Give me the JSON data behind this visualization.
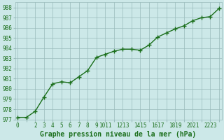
{
  "x": [
    0,
    1,
    2,
    3,
    4,
    5,
    6,
    7,
    8,
    9,
    10,
    11,
    12,
    13,
    14,
    15,
    16,
    17,
    18,
    19,
    20,
    21,
    22,
    23
  ],
  "y": [
    977.2,
    977.2,
    977.8,
    979.2,
    980.5,
    980.7,
    980.6,
    981.2,
    981.8,
    983.1,
    983.4,
    983.7,
    983.9,
    983.9,
    983.8,
    984.3,
    985.1,
    985.5,
    985.9,
    986.2,
    986.7,
    987.0,
    987.1,
    987.9
  ],
  "line_color": "#1a6e1a",
  "marker": "+",
  "marker_size": 4,
  "line_width": 1.0,
  "bg_color": "#cce8e8",
  "grid_color": "#99bbbb",
  "xlabel": "Graphe pression niveau de la mer (hPa)",
  "xlabel_fontsize": 7,
  "xlabel_color": "#1a6e1a",
  "ylabel_ticks": [
    977,
    978,
    979,
    980,
    981,
    982,
    983,
    984,
    985,
    986,
    987,
    988
  ],
  "xtick_labels": [
    "0",
    "2",
    "3",
    "4",
    "5",
    "6",
    "7",
    "8",
    "9",
    "1011",
    "1213",
    "1415",
    "1617",
    "1819",
    "2021",
    "2223"
  ],
  "ylim": [
    977,
    988.5
  ],
  "xlim": [
    -0.3,
    23.3
  ],
  "tick_fontsize": 5.5,
  "tick_color": "#1a6e1a"
}
